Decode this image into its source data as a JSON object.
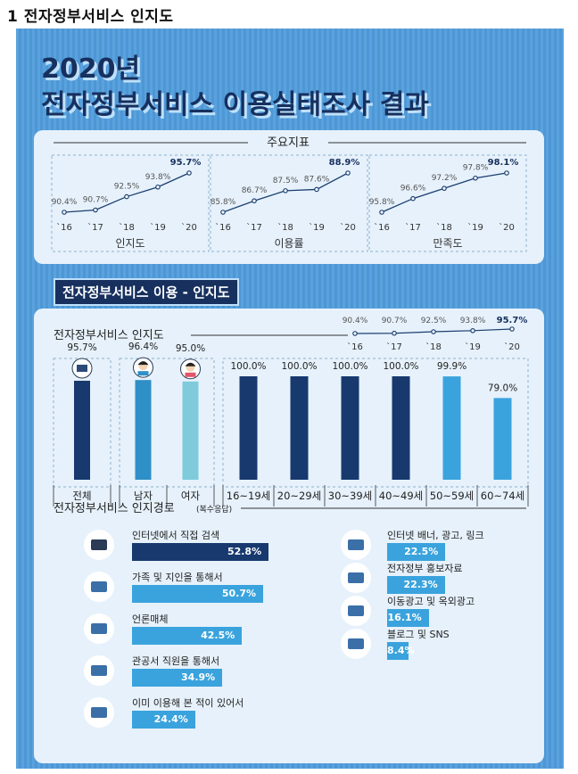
{
  "page_title": "1  전자정부서비스 인지도",
  "header": {
    "line1": "2020년",
    "line2": "전자정부서비스 이용실태조사 결과"
  },
  "key_indicators": {
    "title": "주요지표",
    "charts": [
      {
        "label": "인지도",
        "years": [
          "`16",
          "`17",
          "`18",
          "`19",
          "`20"
        ],
        "values": [
          90.4,
          90.7,
          92.5,
          93.8,
          95.7
        ],
        "value_labels": [
          "90.4%",
          "90.7%",
          "92.5%",
          "93.8%",
          "95.7%"
        ]
      },
      {
        "label": "이용률",
        "years": [
          "`16",
          "`17",
          "`18",
          "`19",
          "`20"
        ],
        "values": [
          85.8,
          86.7,
          87.5,
          87.6,
          88.9
        ],
        "value_labels": [
          "85.8%",
          "86.7%",
          "87.5%",
          "87.6%",
          "88.9%"
        ]
      },
      {
        "label": "만족도",
        "years": [
          "`16",
          "`17",
          "`18",
          "`19",
          "`20"
        ],
        "values": [
          95.8,
          96.6,
          97.2,
          97.8,
          98.1
        ],
        "value_labels": [
          "95.8%",
          "96.6%",
          "97.2%",
          "97.8%",
          "98.1%"
        ]
      }
    ]
  },
  "section_title": "전자정부서비스 이용 - 인지도",
  "awareness": {
    "title": "전자정부서비스 인지도",
    "trend": {
      "years": [
        "`16",
        "`17",
        "`18",
        "`19",
        "`20"
      ],
      "values": [
        90.4,
        90.7,
        92.5,
        93.8,
        95.7
      ],
      "value_labels": [
        "90.4%",
        "90.7%",
        "92.5%",
        "93.8%",
        "95.7%"
      ]
    }
  },
  "chart_data": [
    {
      "type": "line",
      "title": "인지도",
      "x": [
        "`16",
        "`17",
        "`18",
        "`19",
        "`20"
      ],
      "values": [
        90.4,
        90.7,
        92.5,
        93.8,
        95.7
      ]
    },
    {
      "type": "line",
      "title": "이용률",
      "x": [
        "`16",
        "`17",
        "`18",
        "`19",
        "`20"
      ],
      "values": [
        85.8,
        86.7,
        87.5,
        87.6,
        88.9
      ]
    },
    {
      "type": "line",
      "title": "만족도",
      "x": [
        "`16",
        "`17",
        "`18",
        "`19",
        "`20"
      ],
      "values": [
        95.8,
        96.6,
        97.2,
        97.8,
        98.1
      ]
    },
    {
      "type": "bar",
      "title": "전자정부서비스 인지도",
      "categories": [
        "전체",
        "남자",
        "여자",
        "16~19세",
        "20~29세",
        "30~39세",
        "40~49세",
        "50~59세",
        "60~74세"
      ],
      "values": [
        95.7,
        96.4,
        95.0,
        100.0,
        100.0,
        100.0,
        100.0,
        99.9,
        79.0
      ],
      "value_labels": [
        "95.7%",
        "96.4%",
        "95.0%",
        "100.0%",
        "100.0%",
        "100.0%",
        "100.0%",
        "99.9%",
        "79.0%"
      ],
      "colors": [
        "#17396e",
        "#2f8fc7",
        "#7fcbdc",
        "#17396e",
        "#17396e",
        "#17396e",
        "#17396e",
        "#3aa3dd",
        "#3aa3dd"
      ],
      "ylim": [
        0,
        100
      ]
    },
    {
      "type": "bar",
      "title": "전자정부서비스 인지경로",
      "subtitle": "(복수응답)",
      "categories": [
        "인터넷에서 직접 검색",
        "가족 및 지인을 통해서",
        "언론매체",
        "관공서 직원을 통해서",
        "이미 이용해 본 적이 있어서",
        "인터넷 배너, 광고, 링크",
        "전자정부 홍보자료",
        "이동광고 및 옥외광고",
        "블로그 및 SNS"
      ],
      "values": [
        52.8,
        50.7,
        42.5,
        34.9,
        24.4,
        22.5,
        22.3,
        16.1,
        8.4
      ],
      "value_labels": [
        "52.8%",
        "50.7%",
        "42.5%",
        "34.9%",
        "24.4%",
        "22.5%",
        "22.3%",
        "16.1%",
        "8.4%"
      ],
      "icons": [
        "monitor-icon",
        "family-icon",
        "tv-icon",
        "officer-icon",
        "computer-icon",
        "banner-icon",
        "brochure-icon",
        "bus-icon",
        "phone-icon"
      ],
      "colors": [
        "#17396e",
        "#3aa3dd",
        "#3aa3dd",
        "#3aa3dd",
        "#3aa3dd",
        "#3aa3dd",
        "#3aa3dd",
        "#3aa3dd",
        "#3aa3dd"
      ]
    }
  ],
  "path_section": {
    "title": "전자정부서비스 인지경로",
    "subtitle": "(복수응답)"
  },
  "colors": {
    "navy": "#17396e",
    "blue": "#3aa3dd",
    "male": "#2f8fc7",
    "female": "#7fcbdc",
    "bg": "#4e97d6",
    "card": "#e6f1fb"
  }
}
